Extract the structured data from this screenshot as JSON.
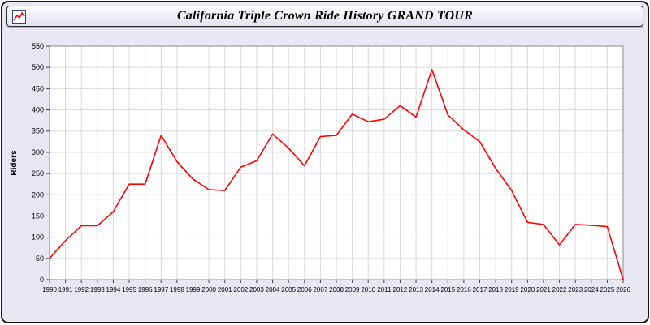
{
  "window": {
    "title": "California Triple Crown Ride History GRAND TOUR"
  },
  "chart_data": {
    "type": "line",
    "title": "California Triple Crown Ride History GRAND TOUR",
    "xlabel": "",
    "ylabel": "Riders",
    "ylim": [
      0,
      550
    ],
    "ytick_step": 50,
    "grid": true,
    "legend": "none",
    "line_color": "#ff0000",
    "grid_color": "#d8d8d8",
    "plot_bg": "#ffffff",
    "x": [
      "1990",
      "1991",
      "1992",
      "1993",
      "1994",
      "1995",
      "1996",
      "1997",
      "1998",
      "1999",
      "2000",
      "2001",
      "2002",
      "2003",
      "2004",
      "2005",
      "2006",
      "2007",
      "2008",
      "2009",
      "2010",
      "2011",
      "2012",
      "2013",
      "2014",
      "2015",
      "2016",
      "2017",
      "2018",
      "2019",
      "2020",
      "2021",
      "2022",
      "2023",
      "2024",
      "2025",
      "2026"
    ],
    "series": [
      {
        "name": "Riders",
        "values": [
          50,
          92,
          127,
          127,
          160,
          225,
          225,
          340,
          278,
          237,
          212,
          210,
          265,
          280,
          343,
          310,
          268,
          337,
          340,
          390,
          372,
          378,
          410,
          383,
          495,
          388,
          353,
          325,
          262,
          210,
          135,
          130,
          82,
          130,
          128,
          125,
          0
        ]
      }
    ]
  }
}
